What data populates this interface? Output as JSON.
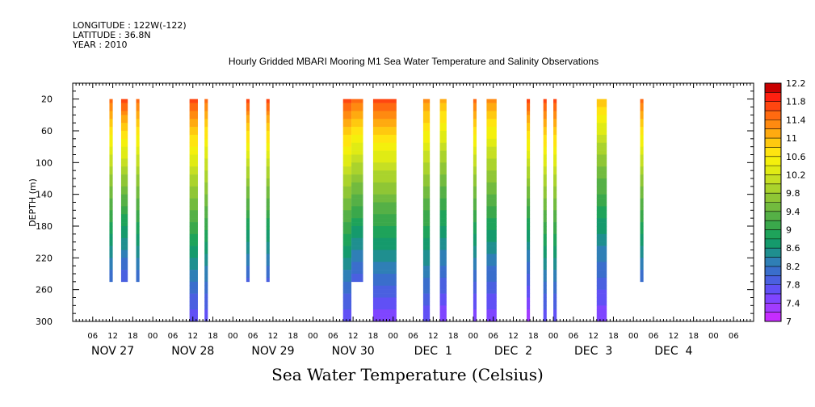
{
  "header": {
    "longitude": "LONGITUDE : 122W(-122)",
    "latitude": "LATITUDE : 36.8N",
    "year": "YEAR : 2010"
  },
  "chart_data": {
    "type": "heatmap",
    "title": "Hourly Gridded MBARI Mooring M1 Sea Water Temperature and Salinity Observations",
    "ylabel": "DEPTH (m)",
    "xlabel": "",
    "units_label": "Sea Water Temperature (Celsius)",
    "y_axis": {
      "range": [
        300,
        0
      ],
      "ticks": [
        20,
        60,
        100,
        140,
        180,
        220,
        260,
        300
      ]
    },
    "x_axis": {
      "range_hours": [
        0,
        204
      ],
      "hour_tick_labels": [
        "06",
        "12",
        "18",
        "00",
        "06",
        "12",
        "18",
        "00",
        "06",
        "12",
        "18",
        "00",
        "06",
        "12",
        "18",
        "00",
        "06",
        "12",
        "18",
        "00",
        "06",
        "12",
        "18",
        "00",
        "06",
        "12",
        "18",
        "00",
        "06",
        "12",
        "18",
        "00",
        "06",
        "12",
        "18",
        "00",
        "06",
        "12",
        "18",
        "00",
        "06",
        "12",
        "18",
        "00",
        "06",
        "12",
        "18",
        "00",
        "06",
        "12",
        "18",
        "00",
        "06",
        "12",
        "18",
        "00",
        "06",
        "12",
        "18",
        "00",
        "06",
        "12",
        "18",
        "00",
        "06",
        "12",
        "18",
        "00",
        "06",
        "12",
        "18",
        "00",
        "06",
        "12",
        "18",
        "00",
        "06",
        "12",
        "18",
        "00",
        "06",
        "12",
        "18",
        "00",
        "06",
        "12",
        "18",
        "00",
        "06",
        "12",
        "18",
        "00",
        "06",
        "12",
        "18",
        "00"
      ],
      "day_labels": [
        {
          "label": "NOV 27",
          "hour": 12
        },
        {
          "label": "NOV 28",
          "hour": 36
        },
        {
          "label": "NOV 29",
          "hour": 60
        },
        {
          "label": "NOV 30",
          "hour": 84
        },
        {
          "label": "DEC  1",
          "hour": 108
        },
        {
          "label": "DEC  2",
          "hour": 132
        },
        {
          "label": "DEC  3",
          "hour": 156
        },
        {
          "label": "DEC  4",
          "hour": 180
        }
      ]
    },
    "colorbar": {
      "levels": [
        7,
        7.2,
        7.4,
        7.6,
        7.8,
        8,
        8.2,
        8.4,
        8.6,
        8.8,
        9,
        9.2,
        9.4,
        9.6,
        9.8,
        10,
        10.2,
        10.4,
        10.6,
        10.8,
        11,
        11.2,
        11.4,
        11.6,
        11.8,
        12,
        12.2
      ],
      "labels": [
        "7",
        "7.4",
        "7.8",
        "8.2",
        "8.6",
        "9",
        "9.4",
        "9.8",
        "10.2",
        "10.6",
        "11",
        "11.4",
        "11.8",
        "12.2"
      ],
      "colors": [
        "#c62cff",
        "#a13cff",
        "#7f45ff",
        "#6050f5",
        "#4a60e0",
        "#3a6ecc",
        "#2f7fb6",
        "#1f8f8f",
        "#159a6c",
        "#1ea35a",
        "#3aa84b",
        "#55b046",
        "#72bb3e",
        "#8fc635",
        "#aad32c",
        "#c6df23",
        "#e0eb14",
        "#f4f00c",
        "#ffe410",
        "#ffc90f",
        "#ffaa10",
        "#ff8a10",
        "#ff6a10",
        "#ff4610",
        "#ff2010",
        "#c80000"
      ]
    },
    "series": [
      {
        "start_hour": 11,
        "end_hour": 12,
        "depth_min": 20,
        "depth_max": 250,
        "surface_temp": 11.6,
        "bottom_temp": 8.0
      },
      {
        "start_hour": 14.5,
        "end_hour": 16.5,
        "depth_min": 20,
        "depth_max": 250,
        "surface_temp": 11.8,
        "bottom_temp": 7.8
      },
      {
        "start_hour": 19,
        "end_hour": 20,
        "depth_min": 20,
        "depth_max": 250,
        "surface_temp": 11.6,
        "bottom_temp": 8.0
      },
      {
        "start_hour": 35,
        "end_hour": 37.5,
        "depth_min": 20,
        "depth_max": 300,
        "surface_temp": 11.8,
        "bottom_temp": 7.6
      },
      {
        "start_hour": 39.5,
        "end_hour": 40.5,
        "depth_min": 20,
        "depth_max": 300,
        "surface_temp": 11.6,
        "bottom_temp": 7.6
      },
      {
        "start_hour": 52,
        "end_hour": 53,
        "depth_min": 20,
        "depth_max": 250,
        "surface_temp": 11.8,
        "bottom_temp": 7.9
      },
      {
        "start_hour": 58,
        "end_hour": 59,
        "depth_min": 20,
        "depth_max": 250,
        "surface_temp": 11.8,
        "bottom_temp": 7.9
      },
      {
        "start_hour": 81,
        "end_hour": 83.5,
        "depth_min": 20,
        "depth_max": 300,
        "surface_temp": 11.8,
        "bottom_temp": 7.6
      },
      {
        "start_hour": 83.5,
        "end_hour": 87,
        "depth_min": 20,
        "depth_max": 250,
        "surface_temp": 11.6,
        "bottom_temp": 7.9
      },
      {
        "start_hour": 90,
        "end_hour": 97,
        "depth_min": 20,
        "depth_max": 300,
        "surface_temp": 11.8,
        "bottom_temp": 7.4
      },
      {
        "start_hour": 105,
        "end_hour": 107,
        "depth_min": 20,
        "depth_max": 300,
        "surface_temp": 11.4,
        "bottom_temp": 7.6
      },
      {
        "start_hour": 110,
        "end_hour": 112,
        "depth_min": 20,
        "depth_max": 300,
        "surface_temp": 11.2,
        "bottom_temp": 7.4
      },
      {
        "start_hour": 120,
        "end_hour": 121,
        "depth_min": 20,
        "depth_max": 300,
        "surface_temp": 11.6,
        "bottom_temp": 7.4
      },
      {
        "start_hour": 124,
        "end_hour": 127,
        "depth_min": 20,
        "depth_max": 300,
        "surface_temp": 11.4,
        "bottom_temp": 7.4
      },
      {
        "start_hour": 136,
        "end_hour": 137,
        "depth_min": 20,
        "depth_max": 300,
        "surface_temp": 11.8,
        "bottom_temp": 7.2
      },
      {
        "start_hour": 141,
        "end_hour": 142,
        "depth_min": 20,
        "depth_max": 300,
        "surface_temp": 11.8,
        "bottom_temp": 7.6
      },
      {
        "start_hour": 144,
        "end_hour": 145,
        "depth_min": 20,
        "depth_max": 300,
        "surface_temp": 11.8,
        "bottom_temp": 7.6
      },
      {
        "start_hour": 157,
        "end_hour": 160,
        "depth_min": 20,
        "depth_max": 300,
        "surface_temp": 11.0,
        "bottom_temp": 7.4
      },
      {
        "start_hour": 170,
        "end_hour": 171,
        "depth_min": 20,
        "depth_max": 250,
        "surface_temp": 11.6,
        "bottom_temp": 8.0
      }
    ]
  }
}
